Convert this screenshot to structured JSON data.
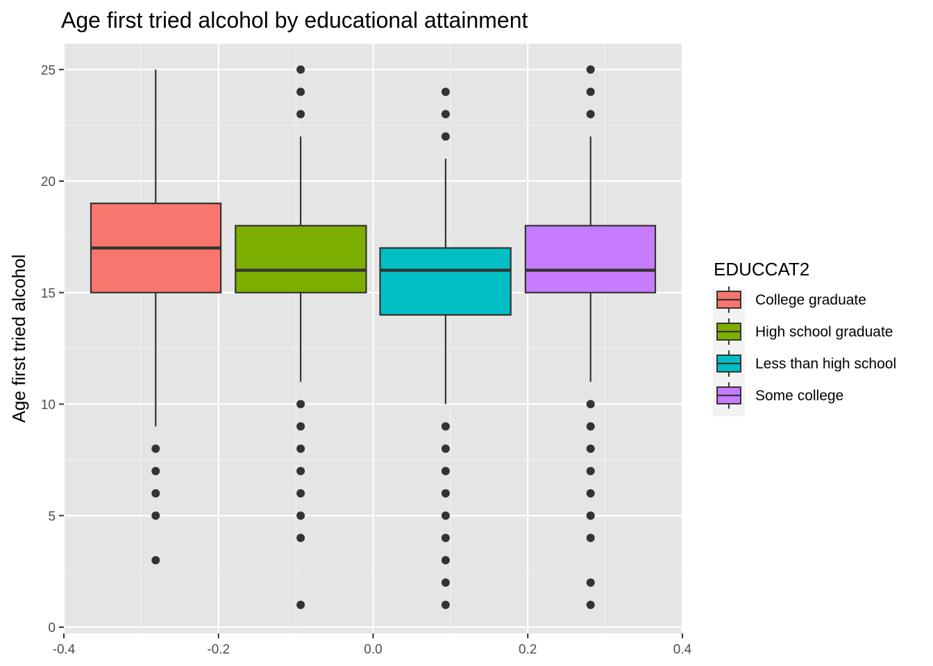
{
  "chart_data": {
    "type": "boxplot",
    "title": "Age first tried alcohol by educational attainment",
    "xlabel": "",
    "ylabel": "Age first tried alcohol",
    "xlim": [
      -0.4,
      0.4
    ],
    "ylim": [
      0,
      26
    ],
    "x_ticks": [
      "-0.4",
      "-0.2",
      "0.0",
      "0.2",
      "0.4"
    ],
    "y_ticks": [
      "0",
      "5",
      "10",
      "15",
      "20",
      "25"
    ],
    "grid": true,
    "panel_background": "#e5e5e5",
    "legend": {
      "title": "EDUCCAT2",
      "position": "right"
    },
    "series": [
      {
        "name": "College graduate",
        "color": "#f8766d",
        "x_center": -0.28125,
        "x_range": [
          -0.365,
          -0.197
        ],
        "q1": 15,
        "median": 17,
        "q3": 19,
        "whisker_low": 9,
        "whisker_high": 25,
        "outliers": [
          8,
          7,
          6,
          5,
          3
        ]
      },
      {
        "name": "High school graduate",
        "color": "#7cae00",
        "x_center": -0.09375,
        "x_range": [
          -0.178,
          -0.009
        ],
        "q1": 15,
        "median": 16,
        "q3": 18,
        "whisker_low": 11,
        "whisker_high": 22,
        "outliers": [
          25,
          24,
          23,
          10,
          9,
          8,
          7,
          6,
          5,
          4,
          1
        ]
      },
      {
        "name": "Less than high school",
        "color": "#00bfc4",
        "x_center": 0.09375,
        "x_range": [
          0.009,
          0.178
        ],
        "q1": 14,
        "median": 16,
        "q3": 17,
        "whisker_low": 10,
        "whisker_high": 21,
        "outliers": [
          24,
          23,
          22,
          9,
          8,
          7,
          6,
          5,
          4,
          3,
          2,
          1
        ]
      },
      {
        "name": "Some college",
        "color": "#c77cff",
        "x_center": 0.28125,
        "x_range": [
          0.197,
          0.365
        ],
        "q1": 15,
        "median": 16,
        "q3": 18,
        "whisker_low": 11,
        "whisker_high": 22,
        "outliers": [
          25,
          24,
          23,
          10,
          9,
          8,
          7,
          6,
          5,
          4,
          2,
          1
        ]
      }
    ]
  }
}
